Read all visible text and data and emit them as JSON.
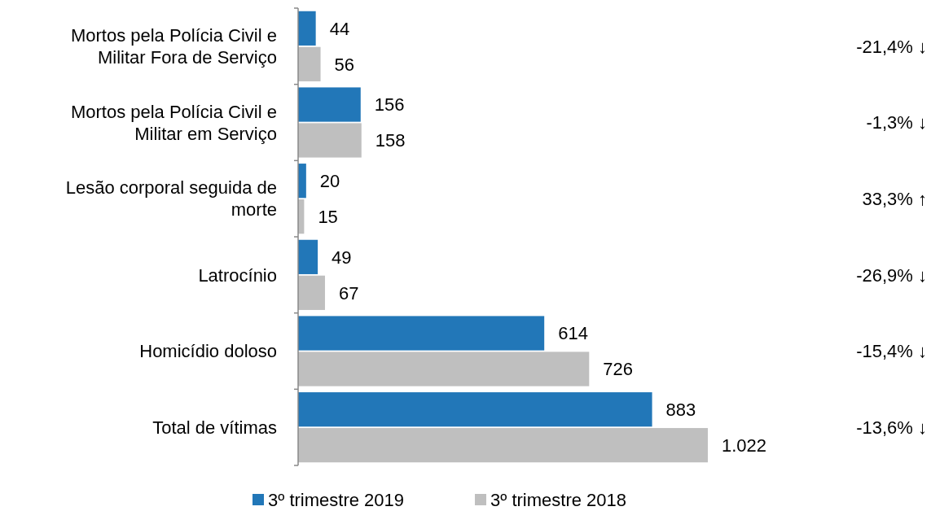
{
  "chart_data": {
    "type": "bar",
    "orientation": "horizontal",
    "categories": [
      "Mortos pela Polícia Civil e Militar Fora de Serviço",
      "Mortos pela Polícia Civil e Militar em Serviço",
      "Lesão corporal seguida de morte",
      "Latrocínio",
      "Homicídio doloso",
      "Total de vítimas"
    ],
    "series": [
      {
        "name": "3º trimestre 2019",
        "color": "#2277b8",
        "values": [
          44,
          156,
          20,
          49,
          614,
          883
        ],
        "value_labels": [
          "44",
          "156",
          "20",
          "49",
          "614",
          "883"
        ]
      },
      {
        "name": "3º trimestre 2018",
        "color": "#bfbfbf",
        "values": [
          56,
          158,
          15,
          67,
          726,
          1022
        ],
        "value_labels": [
          "56",
          "158",
          "15",
          "67",
          "726",
          "1.022"
        ]
      }
    ],
    "annotations": [
      "-21,4% ↓",
      "-1,3% ↓",
      "33,3% ↑",
      "-26,9% ↓",
      "-15,4% ↓",
      "-13,6% ↓"
    ],
    "legend": "bottom",
    "grid": false
  }
}
